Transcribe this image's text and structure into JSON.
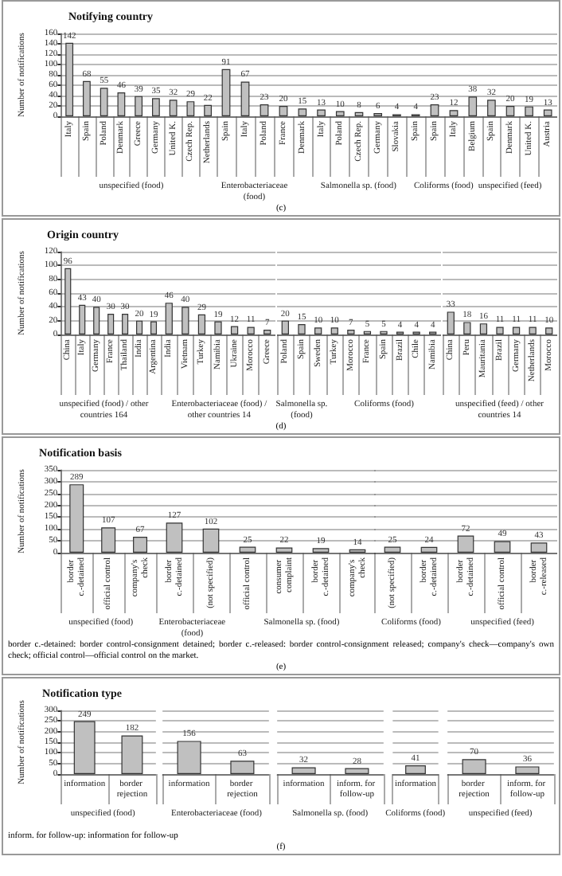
{
  "chart_data": [
    {
      "type": "bar",
      "title": "Notifying country",
      "ylabel": "Number of notifications",
      "xlabel": "unspecified (food)",
      "categories": [
        "Italy",
        "Spain",
        "Poland",
        "Denmark",
        "Greece",
        "Germany",
        "United K.",
        "Czech Rep.",
        "Netherlands"
      ],
      "values": [
        142,
        68,
        55,
        46,
        39,
        35,
        32,
        29,
        22
      ],
      "color": "#c0c0c0",
      "ylim": [
        0,
        160
      ],
      "yticks": [
        0,
        20,
        40,
        60,
        80,
        100,
        120,
        140,
        160
      ],
      "grid": "y",
      "data_labels": true
    },
    {
      "type": "bar",
      "xlabel": "Enterobacteriaceae (food)",
      "categories": [
        "Spain",
        "Italy",
        "Poland",
        "France"
      ],
      "values": [
        91,
        67,
        23,
        20
      ],
      "color": "#c0c0c0",
      "ylim": [
        0,
        160
      ],
      "yticks": [
        0,
        20,
        40,
        60,
        80,
        100,
        120,
        140,
        160
      ],
      "grid": "y",
      "data_labels": true,
      "tick_labels": "x"
    },
    {
      "type": "bar",
      "xlabel": "Salmonella sp. (food)",
      "categories": [
        "Denmark",
        "Italy",
        "Poland",
        "Czech Rep.",
        "Germany",
        "Slovakia",
        "Spain"
      ],
      "values": [
        15,
        13,
        10,
        8,
        6,
        4,
        4
      ],
      "color": "#c0c0c0",
      "ylim": [
        0,
        160
      ],
      "yticks": [
        0,
        20,
        40,
        60,
        80,
        100,
        120,
        140,
        160
      ],
      "grid": "y",
      "data_labels": true,
      "tick_labels": "x"
    },
    {
      "type": "bar",
      "xlabel": "Coliforms (food)",
      "categories": [
        "Spain",
        "Italy"
      ],
      "values": [
        23,
        12
      ],
      "color": "#c0c0c0",
      "ylim": [
        0,
        160
      ],
      "yticks": [
        0,
        20,
        40,
        60,
        80,
        100,
        120,
        140,
        160
      ],
      "grid": "y",
      "data_labels": true,
      "tick_labels": "x"
    },
    {
      "type": "bar",
      "xlabel": "unspecified (feed)",
      "categories": [
        "Belgium",
        "Spain",
        "Denmark",
        "United K.",
        "Austria"
      ],
      "values": [
        38,
        32,
        20,
        19,
        13
      ],
      "color": "#c0c0c0",
      "ylim": [
        0,
        160
      ],
      "yticks": [
        0,
        20,
        40,
        60,
        80,
        100,
        120,
        140,
        160
      ],
      "grid": "y",
      "data_labels": true,
      "tick_labels": "x",
      "annotations": [
        "(c)"
      ]
    },
    {
      "type": "bar",
      "title": "Origin country",
      "ylabel": "Number of notifications",
      "xlabel": "unspecified (food) / other countries 164",
      "categories": [
        "China",
        "Italy",
        "Germany",
        "France",
        "Thailand",
        "India",
        "Argentina"
      ],
      "values": [
        96,
        43,
        40,
        30,
        30,
        20,
        19
      ],
      "color": "#c0c0c0",
      "ylim": [
        0,
        120
      ],
      "yticks": [
        0,
        20,
        40,
        60,
        80,
        100,
        120
      ],
      "grid": "y",
      "data_labels": true
    },
    {
      "type": "bar",
      "xlabel": "Enterobacteriaceae (food) / other countries 14",
      "categories": [
        "India",
        "Vietnam",
        "Turkey",
        "Namibia",
        "Ukraine",
        "Morocco",
        "Greece"
      ],
      "values": [
        46,
        40,
        29,
        19,
        12,
        11,
        7
      ],
      "color": "#c0c0c0",
      "ylim": [
        0,
        120
      ],
      "yticks": [
        0,
        20,
        40,
        60,
        80,
        100,
        120
      ],
      "grid": "y",
      "data_labels": true,
      "tick_labels": "x"
    },
    {
      "type": "bar",
      "xlabel": "Salmonella sp. (food)",
      "categories": [
        "Poland",
        "Spain",
        "Sweden"
      ],
      "values": [
        20,
        15,
        10
      ],
      "color": "#c0c0c0",
      "ylim": [
        0,
        120
      ],
      "yticks": [
        0,
        20,
        40,
        60,
        80,
        100,
        120
      ],
      "grid": "y",
      "data_labels": true,
      "tick_labels": "x"
    },
    {
      "type": "bar",
      "xlabel": "Coliforms (food)",
      "categories": [
        "Turkey",
        "Morocco",
        "France",
        "Spain",
        "Brazil",
        "Chile",
        "Namibia"
      ],
      "values": [
        10,
        7,
        5,
        5,
        4,
        4,
        4
      ],
      "color": "#c0c0c0",
      "ylim": [
        0,
        120
      ],
      "yticks": [
        0,
        20,
        40,
        60,
        80,
        100,
        120
      ],
      "grid": "y",
      "data_labels": true,
      "tick_labels": "x"
    },
    {
      "type": "bar",
      "xlabel": "unspecified (feed) / other countries 14",
      "categories": [
        "China",
        "Peru",
        "Mauritania",
        "Brazil",
        "Germany",
        "Netherlands",
        "Morocco"
      ],
      "values": [
        33,
        18,
        16,
        11,
        11,
        11,
        10
      ],
      "color": "#c0c0c0",
      "ylim": [
        0,
        120
      ],
      "yticks": [
        0,
        20,
        40,
        60,
        80,
        100,
        120
      ],
      "grid": "y",
      "data_labels": true,
      "tick_labels": "x",
      "annotations": [
        "(d)"
      ]
    },
    {
      "type": "bar",
      "title": "Notification basis",
      "ylabel": "Number of notifications",
      "xlabel": "unspecified (food)",
      "categories": [
        "border c.-detained",
        "official control",
        "company's check"
      ],
      "values": [
        289,
        107,
        67
      ],
      "color": "#c0c0c0",
      "ylim": [
        0,
        350
      ],
      "yticks": [
        0,
        50,
        100,
        150,
        200,
        250,
        300,
        350
      ],
      "grid": "y",
      "data_labels": true
    },
    {
      "type": "bar",
      "xlabel": "Enterobacteriaceae (food)",
      "categories": [
        "border c.-detained",
        "(not specified)"
      ],
      "values": [
        127,
        102
      ],
      "color": "#c0c0c0",
      "ylim": [
        0,
        350
      ],
      "yticks": [
        0,
        50,
        100,
        150,
        200,
        250,
        300,
        350
      ],
      "grid": "y",
      "data_labels": true,
      "tick_labels": "x"
    },
    {
      "type": "bar",
      "xlabel": "Salmonella sp. (food)",
      "categories": [
        "official control",
        "consumer complaint",
        "border c.-detained",
        "company's check"
      ],
      "values": [
        25,
        22,
        19,
        14
      ],
      "color": "#c0c0c0",
      "ylim": [
        0,
        350
      ],
      "yticks": [
        0,
        50,
        100,
        150,
        200,
        250,
        300,
        350
      ],
      "grid": "y",
      "data_labels": true,
      "tick_labels": "x"
    },
    {
      "type": "bar",
      "xlabel": "Coliforms (food)",
      "categories": [
        "(not specified)",
        "border c.-detained"
      ],
      "values": [
        25,
        24
      ],
      "color": "#c0c0c0",
      "ylim": [
        0,
        350
      ],
      "yticks": [
        0,
        50,
        100,
        150,
        200,
        250,
        300,
        350
      ],
      "grid": "y",
      "data_labels": true,
      "tick_labels": "x"
    },
    {
      "type": "bar",
      "xlabel": "unspecified (feed)",
      "categories": [
        "border c.-detained",
        "official control",
        "border c.-released"
      ],
      "values": [
        72,
        49,
        43
      ],
      "color": "#c0c0c0",
      "ylim": [
        0,
        350
      ],
      "yticks": [
        0,
        50,
        100,
        150,
        200,
        250,
        300,
        350
      ],
      "grid": "y",
      "data_labels": true,
      "tick_labels": "x",
      "annotations": [
        "border c.-detained: border control-consignment detained; border c.-released: border control-consignment released; company's check—company's own check; official control—official control on the market.",
        "(e)"
      ]
    },
    {
      "type": "bar",
      "title": "Notification type",
      "ylabel": "Number of notifications",
      "xlabel": "unspecified (food)",
      "categories": [
        "information",
        "border rejection"
      ],
      "values": [
        249,
        182
      ],
      "color": "#c0c0c0",
      "ylim": [
        0,
        300
      ],
      "yticks": [
        0,
        50,
        100,
        150,
        200,
        250,
        300
      ],
      "grid": "y",
      "data_labels": true
    },
    {
      "type": "bar",
      "xlabel": "Enterobacteriaceae (food)",
      "categories": [
        "information",
        "border rejection"
      ],
      "values": [
        156,
        63
      ],
      "color": "#c0c0c0",
      "ylim": [
        0,
        300
      ],
      "yticks": [
        0,
        50,
        100,
        150,
        200,
        250,
        300
      ],
      "grid": "y",
      "data_labels": true,
      "tick_labels": "x"
    },
    {
      "type": "bar",
      "xlabel": "Salmonella sp. (food)",
      "categories": [
        "information",
        "inform. for follow-up"
      ],
      "values": [
        32,
        28
      ],
      "color": "#c0c0c0",
      "ylim": [
        0,
        300
      ],
      "yticks": [
        0,
        50,
        100,
        150,
        200,
        250,
        300
      ],
      "grid": "y",
      "data_labels": true,
      "tick_labels": "x"
    },
    {
      "type": "bar",
      "xlabel": "Coliforms (food)",
      "categories": [
        "information"
      ],
      "values": [
        41
      ],
      "color": "#c0c0c0",
      "ylim": [
        0,
        300
      ],
      "yticks": [
        0,
        50,
        100,
        150,
        200,
        250,
        300
      ],
      "grid": "y",
      "data_labels": true,
      "tick_labels": "x"
    },
    {
      "type": "bar",
      "xlabel": "unspecified (feed)",
      "categories": [
        "border rejection",
        "inform. for follow-up"
      ],
      "values": [
        70,
        36
      ],
      "color": "#c0c0c0",
      "ylim": [
        0,
        300
      ],
      "yticks": [
        0,
        50,
        100,
        150,
        200,
        250,
        300
      ],
      "grid": "y",
      "data_labels": true,
      "tick_labels": "x",
      "annotations": [
        "inform. for follow-up: information for follow-up",
        "(f)"
      ]
    }
  ]
}
